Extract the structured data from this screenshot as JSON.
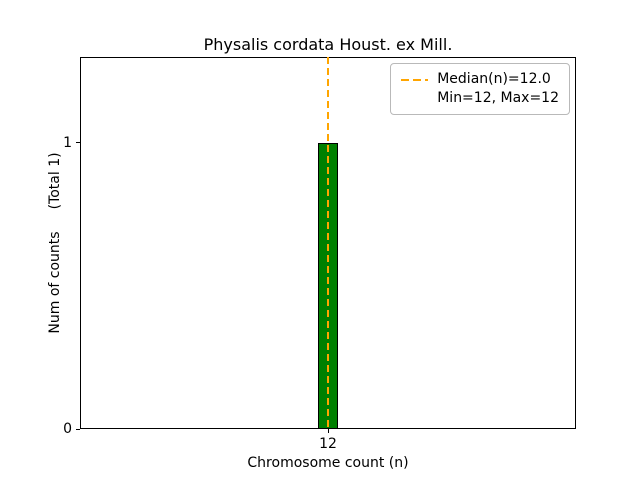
{
  "chart_data": {
    "type": "bar",
    "title": "Physalis cordata Houst. ex Mill.",
    "xlabel": "Chromosome count (n)",
    "ylabel": "Num of counts",
    "ylabel_note": "(Total 1)",
    "categories": [
      12
    ],
    "xtick_labels": [
      "12"
    ],
    "values": [
      1
    ],
    "yticks": [
      0,
      1
    ],
    "ytick_labels": [
      "0",
      "1"
    ],
    "ylim": [
      0,
      1.3
    ],
    "median": 12.0,
    "min": 12,
    "max": 12,
    "bar_color": "#008000",
    "bar_edge_color": "#000000",
    "median_line_color": "#FFA500",
    "median_line_style": "dashed",
    "grid": false,
    "legend_position": "upper right",
    "legend_labels": [
      "Median(n)=12.0",
      "Min=12, Max=12"
    ]
  }
}
